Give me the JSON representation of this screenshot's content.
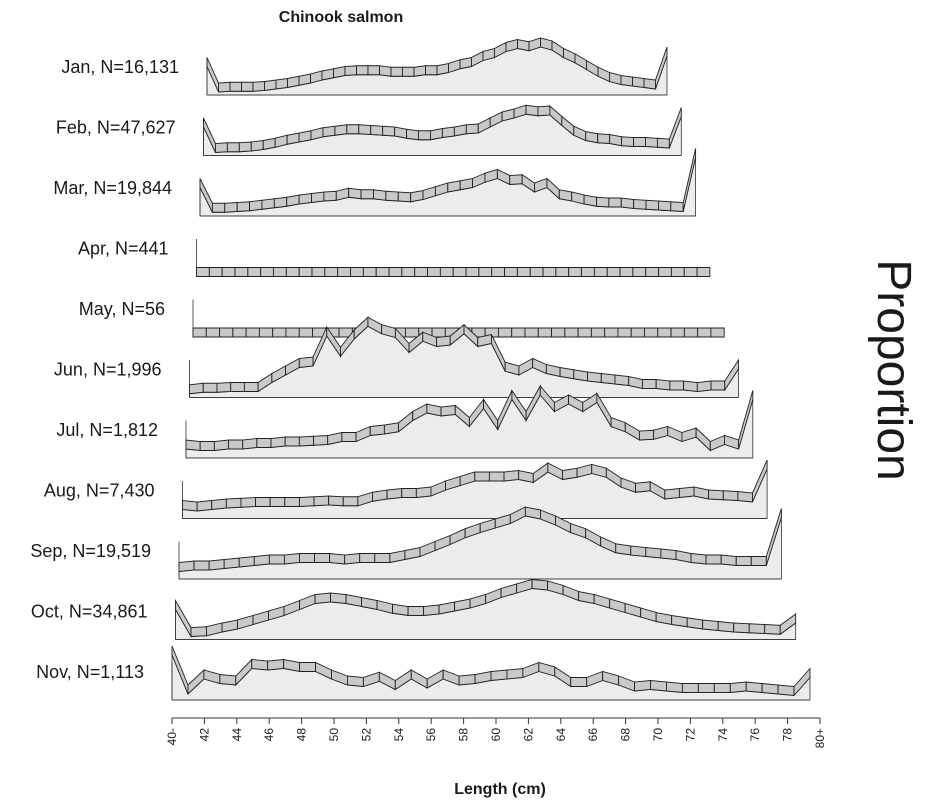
{
  "chart_data": {
    "type": "area",
    "title": "Chinook salmon",
    "xlabel": "Length (cm)",
    "ylabel": "Proportion",
    "x_ticks": [
      "40-",
      "42",
      "44",
      "46",
      "48",
      "50",
      "52",
      "54",
      "56",
      "58",
      "60",
      "62",
      "64",
      "66",
      "68",
      "70",
      "72",
      "74",
      "76",
      "78",
      "80+"
    ],
    "x": [
      40,
      41,
      42,
      43,
      44,
      45,
      46,
      47,
      48,
      49,
      50,
      51,
      52,
      53,
      54,
      55,
      56,
      57,
      58,
      59,
      60,
      61,
      62,
      63,
      64,
      65,
      66,
      67,
      68,
      69,
      70,
      71,
      72,
      73,
      74,
      75,
      76,
      77,
      78,
      79,
      80
    ],
    "series": [
      {
        "name": "Jan, N=16,131",
        "values": [
          0.38,
          0.04,
          0.05,
          0.05,
          0.05,
          0.06,
          0.08,
          0.1,
          0.13,
          0.16,
          0.2,
          0.23,
          0.26,
          0.27,
          0.27,
          0.27,
          0.25,
          0.25,
          0.25,
          0.27,
          0.27,
          0.3,
          0.35,
          0.38,
          0.46,
          0.5,
          0.58,
          0.62,
          0.59,
          0.64,
          0.6,
          0.5,
          0.43,
          0.34,
          0.25,
          0.18,
          0.14,
          0.12,
          0.1,
          0.08,
          0.52
        ]
      },
      {
        "name": "Feb, N=47,627",
        "values": [
          0.38,
          0.04,
          0.05,
          0.05,
          0.06,
          0.08,
          0.11,
          0.15,
          0.18,
          0.21,
          0.25,
          0.27,
          0.29,
          0.29,
          0.28,
          0.27,
          0.26,
          0.23,
          0.21,
          0.21,
          0.24,
          0.26,
          0.29,
          0.3,
          0.38,
          0.46,
          0.5,
          0.55,
          0.53,
          0.54,
          0.4,
          0.27,
          0.2,
          0.17,
          0.16,
          0.13,
          0.12,
          0.12,
          0.11,
          0.1,
          0.52
        ]
      },
      {
        "name": "Mar, N=19,844",
        "values": [
          0.38,
          0.05,
          0.05,
          0.06,
          0.07,
          0.09,
          0.11,
          0.13,
          0.16,
          0.18,
          0.2,
          0.21,
          0.25,
          0.23,
          0.23,
          0.21,
          0.2,
          0.19,
          0.22,
          0.27,
          0.32,
          0.35,
          0.38,
          0.45,
          0.5,
          0.42,
          0.43,
          0.32,
          0.38,
          0.23,
          0.2,
          0.16,
          0.13,
          0.12,
          0.12,
          0.1,
          0.09,
          0.08,
          0.07,
          0.06,
          0.78
        ]
      },
      {
        "name": "Apr, N=441",
        "values": [
          0.0,
          0.0,
          0.0,
          0.0,
          0.0,
          0.0,
          0.0,
          0.0,
          0.0,
          0.0,
          0.0,
          0.0,
          0.0,
          0.0,
          0.0,
          0.0,
          0.0,
          0.0,
          0.0,
          0.0,
          0.0,
          0.0,
          0.0,
          0.0,
          0.0,
          0.0,
          0.0,
          0.0,
          0.0,
          0.0,
          0.0,
          0.0,
          0.0,
          0.0,
          0.0,
          0.0,
          0.0,
          0.0,
          0.0,
          0.0,
          0.0
        ]
      },
      {
        "name": "May, N=56",
        "values": [
          0.0,
          0.0,
          0.0,
          0.0,
          0.0,
          0.0,
          0.0,
          0.0,
          0.0,
          0.0,
          0.0,
          0.0,
          0.0,
          0.0,
          0.0,
          0.0,
          0.0,
          0.0,
          0.0,
          0.0,
          0.0,
          0.0,
          0.0,
          0.0,
          0.0,
          0.0,
          0.0,
          0.0,
          0.0,
          0.0,
          0.0,
          0.0,
          0.0,
          0.0,
          0.0,
          0.0,
          0.0,
          0.0,
          0.0,
          0.0,
          0.0
        ]
      },
      {
        "name": "Jun, N=1,996",
        "values": [
          0.05,
          0.07,
          0.07,
          0.08,
          0.08,
          0.08,
          0.2,
          0.3,
          0.4,
          0.42,
          0.82,
          0.55,
          0.78,
          0.95,
          0.85,
          0.8,
          0.6,
          0.75,
          0.68,
          0.7,
          0.85,
          0.68,
          0.72,
          0.35,
          0.3,
          0.4,
          0.32,
          0.28,
          0.25,
          0.22,
          0.2,
          0.18,
          0.16,
          0.12,
          0.12,
          0.1,
          0.1,
          0.08,
          0.1,
          0.1,
          0.38
        ]
      },
      {
        "name": "Jul, N=1,812",
        "values": [
          0.12,
          0.1,
          0.1,
          0.12,
          0.12,
          0.14,
          0.14,
          0.16,
          0.16,
          0.17,
          0.18,
          0.22,
          0.22,
          0.3,
          0.32,
          0.35,
          0.5,
          0.6,
          0.56,
          0.58,
          0.42,
          0.66,
          0.38,
          0.78,
          0.5,
          0.84,
          0.62,
          0.72,
          0.62,
          0.74,
          0.42,
          0.35,
          0.24,
          0.25,
          0.3,
          0.22,
          0.28,
          0.1,
          0.18,
          0.12,
          0.78
        ]
      },
      {
        "name": "Aug, N=7,430",
        "values": [
          0.12,
          0.1,
          0.12,
          0.14,
          0.15,
          0.16,
          0.16,
          0.16,
          0.16,
          0.17,
          0.18,
          0.17,
          0.17,
          0.23,
          0.26,
          0.28,
          0.28,
          0.3,
          0.38,
          0.44,
          0.5,
          0.5,
          0.5,
          0.52,
          0.48,
          0.62,
          0.52,
          0.55,
          0.6,
          0.55,
          0.42,
          0.35,
          0.37,
          0.26,
          0.28,
          0.3,
          0.26,
          0.25,
          0.24,
          0.22,
          0.66
        ]
      },
      {
        "name": "Sep, N=19,519",
        "values": [
          0.1,
          0.12,
          0.12,
          0.14,
          0.16,
          0.18,
          0.2,
          0.2,
          0.22,
          0.22,
          0.22,
          0.2,
          0.22,
          0.22,
          0.22,
          0.26,
          0.3,
          0.38,
          0.46,
          0.55,
          0.62,
          0.68,
          0.74,
          0.84,
          0.8,
          0.72,
          0.62,
          0.55,
          0.44,
          0.35,
          0.32,
          0.3,
          0.28,
          0.26,
          0.22,
          0.2,
          0.2,
          0.18,
          0.18,
          0.18,
          0.82
        ]
      },
      {
        "name": "Oct, N=34,861",
        "values": [
          0.4,
          0.04,
          0.05,
          0.1,
          0.14,
          0.2,
          0.26,
          0.32,
          0.4,
          0.48,
          0.5,
          0.48,
          0.44,
          0.4,
          0.35,
          0.32,
          0.32,
          0.34,
          0.38,
          0.42,
          0.48,
          0.56,
          0.62,
          0.68,
          0.66,
          0.6,
          0.52,
          0.48,
          0.42,
          0.36,
          0.3,
          0.24,
          0.2,
          0.17,
          0.14,
          0.12,
          0.1,
          0.09,
          0.08,
          0.07,
          0.22
        ]
      },
      {
        "name": "Nov, N=1,113",
        "values": [
          0.6,
          0.08,
          0.28,
          0.22,
          0.2,
          0.42,
          0.4,
          0.42,
          0.38,
          0.38,
          0.28,
          0.2,
          0.18,
          0.25,
          0.14,
          0.28,
          0.16,
          0.28,
          0.2,
          0.22,
          0.26,
          0.28,
          0.3,
          0.38,
          0.32,
          0.18,
          0.18,
          0.26,
          0.2,
          0.12,
          0.14,
          0.12,
          0.1,
          0.1,
          0.1,
          0.1,
          0.12,
          0.1,
          0.08,
          0.06,
          0.3
        ]
      }
    ],
    "legend": "none",
    "grid": false
  }
}
